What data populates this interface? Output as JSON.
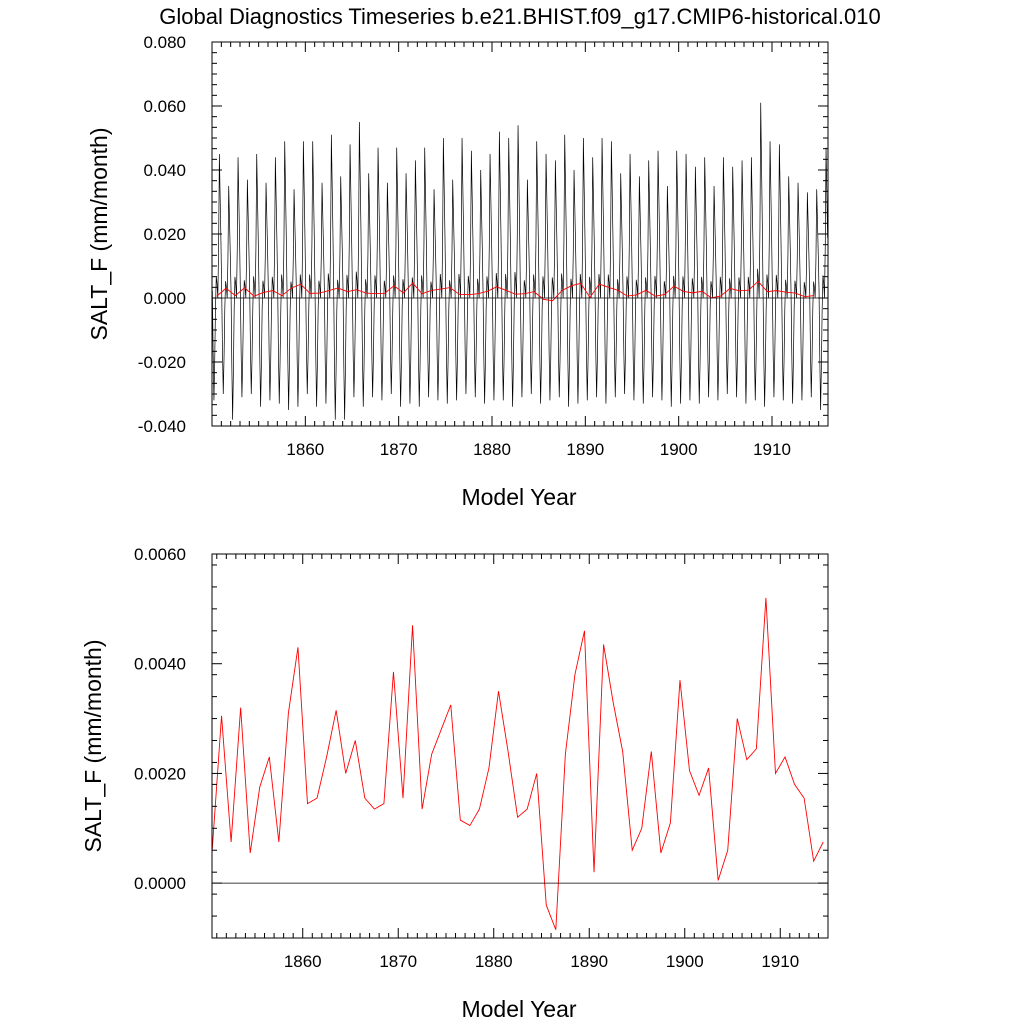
{
  "title": "Global Diagnostics Timeseries b.e21.BHIST.f09_g17.CMIP6-historical.010",
  "chart_data": [
    {
      "type": "line",
      "name": "top-panel",
      "xlabel": "Model Year",
      "ylabel": "SALT_F (mm/month)",
      "xlim": [
        1850,
        1916
      ],
      "ylim": [
        -0.04,
        0.08
      ],
      "x_ticks": [
        1860,
        1870,
        1880,
        1890,
        1900,
        1910
      ],
      "y_ticks": [
        "-0.040",
        "-0.020",
        "0.000",
        "0.020",
        "0.040",
        "0.060",
        "0.080"
      ],
      "y_tick_values": [
        -0.04,
        -0.02,
        0,
        0.02,
        0.04,
        0.06,
        0.08
      ],
      "reference_line": 0,
      "series": [
        {
          "color": "#000000",
          "style": "monthly seasonal cycle",
          "x_start": 1850.04,
          "step": 0.0833333,
          "annual_max": [
            0.045,
            0.035,
            0.044,
            0.037,
            0.045,
            0.036,
            0.044,
            0.049,
            0.034,
            0.049,
            0.049,
            0.036,
            0.051,
            0.038,
            0.048,
            0.055,
            0.039,
            0.047,
            0.036,
            0.047,
            0.039,
            0.043,
            0.047,
            0.034,
            0.05,
            0.037,
            0.05,
            0.046,
            0.04,
            0.045,
            0.052,
            0.05,
            0.054,
            0.037,
            0.049,
            0.045,
            0.043,
            0.051,
            0.04,
            0.05,
            0.044,
            0.05,
            0.049,
            0.039,
            0.045,
            0.038,
            0.043,
            0.046,
            0.035,
            0.046,
            0.045,
            0.041,
            0.044,
            0.035,
            0.044,
            0.041,
            0.043,
            0.044,
            0.061,
            0.049,
            0.048,
            0.038,
            0.036,
            0.033,
            0.034,
            0.047
          ],
          "annual_min": [
            -0.032,
            -0.03,
            -0.038,
            -0.031,
            -0.03,
            -0.034,
            -0.032,
            -0.033,
            -0.035,
            -0.034,
            -0.03,
            -0.034,
            -0.033,
            -0.038,
            -0.038,
            -0.031,
            -0.034,
            -0.031,
            -0.032,
            -0.03,
            -0.034,
            -0.033,
            -0.034,
            -0.031,
            -0.032,
            -0.033,
            -0.032,
            -0.03,
            -0.031,
            -0.033,
            -0.032,
            -0.032,
            -0.034,
            -0.031,
            -0.03,
            -0.033,
            -0.032,
            -0.031,
            -0.034,
            -0.033,
            -0.032,
            -0.031,
            -0.033,
            -0.031,
            -0.03,
            -0.032,
            -0.033,
            -0.031,
            -0.032,
            -0.034,
            -0.033,
            -0.032,
            -0.033,
            -0.031,
            -0.032,
            -0.03,
            -0.031,
            -0.033,
            -0.032,
            -0.034,
            -0.031,
            -0.032,
            -0.033,
            -0.032,
            -0.031,
            -0.035
          ]
        },
        {
          "color": "#ff0000",
          "style": "annual mean",
          "ref": "annual"
        }
      ]
    },
    {
      "type": "line",
      "name": "bottom-panel",
      "xlabel": "Model Year",
      "ylabel": "SALT_F (mm/month)",
      "xlim": [
        1850.5,
        1915
      ],
      "ylim": [
        -0.001,
        0.006
      ],
      "x_ticks": [
        1860,
        1870,
        1880,
        1890,
        1900,
        1910
      ],
      "y_ticks": [
        "0.0000",
        "0.0020",
        "0.0040",
        "0.0060"
      ],
      "y_tick_values": [
        0,
        0.002,
        0.004,
        0.006
      ],
      "reference_line": 0,
      "series": [
        {
          "color": "#ff0000",
          "style": "annual mean",
          "ref": "annual"
        }
      ]
    }
  ],
  "annual": {
    "x": [
      1850.5,
      1851.5,
      1852.5,
      1853.5,
      1854.5,
      1855.5,
      1856.5,
      1857.5,
      1858.5,
      1859.5,
      1860.5,
      1861.5,
      1862.5,
      1863.5,
      1864.5,
      1865.5,
      1866.5,
      1867.5,
      1868.5,
      1869.5,
      1870.5,
      1871.5,
      1872.5,
      1873.5,
      1874.5,
      1875.5,
      1876.5,
      1877.5,
      1878.5,
      1879.5,
      1880.5,
      1881.5,
      1882.5,
      1883.5,
      1884.5,
      1885.5,
      1886.5,
      1887.5,
      1888.5,
      1889.5,
      1890.5,
      1891.5,
      1892.5,
      1893.5,
      1894.5,
      1895.5,
      1896.5,
      1897.5,
      1898.5,
      1899.5,
      1900.5,
      1901.5,
      1902.5,
      1903.5,
      1904.5,
      1905.5,
      1906.5,
      1907.5,
      1908.5,
      1909.5,
      1910.5,
      1911.5,
      1912.5,
      1913.5,
      1914.5
    ],
    "y": [
      0.00055,
      0.00305,
      0.00075,
      0.0032,
      0.00055,
      0.00175,
      0.0023,
      0.00075,
      0.0031,
      0.0043,
      0.00145,
      0.00155,
      0.0023,
      0.00315,
      0.002,
      0.0026,
      0.00155,
      0.00135,
      0.00145,
      0.00385,
      0.00155,
      0.0047,
      0.00135,
      0.00235,
      0.0028,
      0.00325,
      0.00115,
      0.00105,
      0.00135,
      0.0021,
      0.0035,
      0.0024,
      0.0012,
      0.00135,
      0.002,
      -0.0004,
      -0.00085,
      0.00235,
      0.0038,
      0.0046,
      0.0002,
      0.00435,
      0.0033,
      0.0024,
      0.0006,
      0.001,
      0.0024,
      0.00055,
      0.0011,
      0.0037,
      0.00205,
      0.0016,
      0.0021,
      5e-05,
      0.0006,
      0.003,
      0.00225,
      0.00245,
      0.0052,
      0.002,
      0.0023,
      0.0018,
      0.00155,
      0.0004,
      0.00075
    ]
  }
}
